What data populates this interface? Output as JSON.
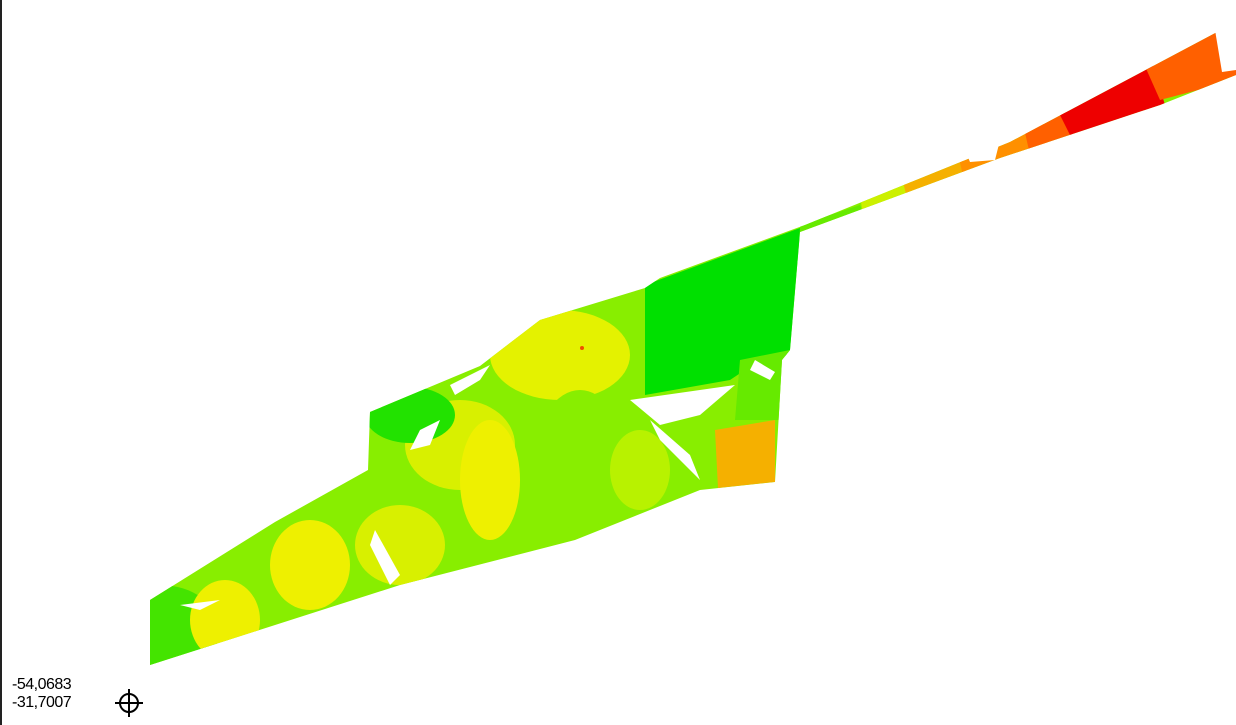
{
  "map": {
    "colors": {
      "green": "#00e000",
      "lime": "#88ee00",
      "yellow": "#eef000",
      "orange": "#f5b000",
      "deep_orange": "#ff6000",
      "red": "#ee0000",
      "background": "#ffffff"
    },
    "coordinates": {
      "longitude": "-54,0683",
      "latitude": "-31,7007"
    },
    "cursor_icon": "crosshair-icon"
  }
}
